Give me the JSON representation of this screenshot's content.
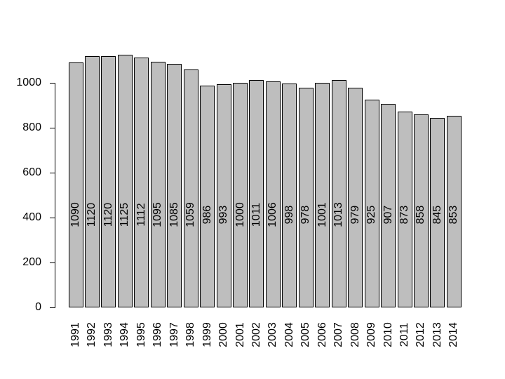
{
  "figure": {
    "background": "#ffffff",
    "text_color": "#000000"
  },
  "chart_data": {
    "type": "bar",
    "title": "",
    "xlabel": "",
    "ylabel": "",
    "categories": [
      "1991",
      "1992",
      "1993",
      "1994",
      "1995",
      "1996",
      "1997",
      "1998",
      "1999",
      "2000",
      "2001",
      "2002",
      "2003",
      "2004",
      "2005",
      "2006",
      "2007",
      "2008",
      "2009",
      "2010",
      "2011",
      "2012",
      "2013",
      "2014"
    ],
    "values": [
      1090,
      1120,
      1120,
      1125,
      1112,
      1095,
      1085,
      1059,
      986,
      993,
      1000,
      1011,
      1006,
      998,
      978,
      1001,
      1013,
      979,
      925,
      907,
      873,
      858,
      845,
      853
    ],
    "bar_value_labels": [
      "1090",
      "1120",
      "1120",
      "1125",
      "1112",
      "1095",
      "1085",
      "1059",
      "986",
      "993",
      "1000",
      "1011",
      "1006",
      "998",
      "978",
      "1001",
      "1013",
      "979",
      "925",
      "907",
      "873",
      "858",
      "845",
      "853"
    ],
    "ytick_labels": [
      "0",
      "200",
      "400",
      "600",
      "800",
      "1000"
    ],
    "yticks": [
      0,
      200,
      400,
      600,
      800,
      1000
    ],
    "ylim": [
      0,
      1160
    ],
    "grid": false,
    "legend_position": "none",
    "bar_fill": "#bebebe",
    "bar_border": "#000000",
    "axis_color": "#000000",
    "x_label_rotation_degrees": 90,
    "value_label_rotation_degrees": 90
  }
}
